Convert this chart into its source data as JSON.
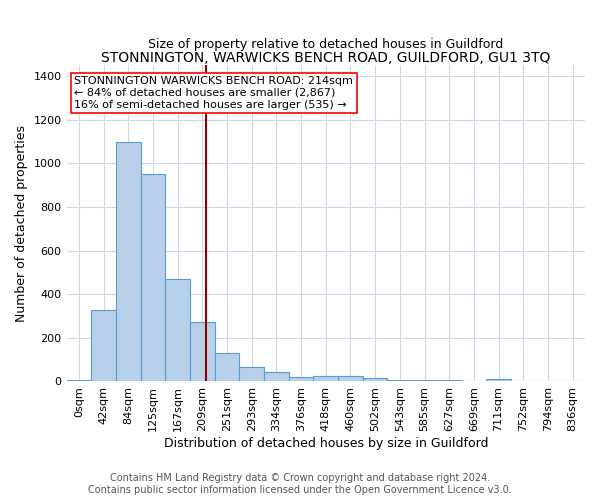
{
  "title": "STONNINGTON, WARWICKS BENCH ROAD, GUILDFORD, GU1 3TQ",
  "subtitle": "Size of property relative to detached houses in Guildford",
  "xlabel": "Distribution of detached houses by size in Guildford",
  "ylabel": "Number of detached properties",
  "categories": [
    "0sqm",
    "42sqm",
    "84sqm",
    "125sqm",
    "167sqm",
    "209sqm",
    "251sqm",
    "293sqm",
    "334sqm",
    "376sqm",
    "418sqm",
    "460sqm",
    "502sqm",
    "543sqm",
    "585sqm",
    "627sqm",
    "669sqm",
    "711sqm",
    "752sqm",
    "794sqm",
    "836sqm"
  ],
  "values": [
    5,
    330,
    1100,
    950,
    470,
    275,
    130,
    65,
    45,
    20,
    25,
    25,
    15,
    5,
    5,
    5,
    0,
    10,
    0,
    0,
    0
  ],
  "bar_color": "#b8d0ea",
  "bar_edge_color": "#5b9bd5",
  "red_line_x": 5.14,
  "red_line_color": "#8b0000",
  "annotation_text": "STONNINGTON WARWICKS BENCH ROAD: 214sqm\n← 84% of detached houses are smaller (2,867)\n16% of semi-detached houses are larger (535) →",
  "annotation_box_color": "white",
  "annotation_box_edge": "red",
  "ylim": [
    0,
    1450
  ],
  "yticks": [
    0,
    200,
    400,
    600,
    800,
    1000,
    1200,
    1400
  ],
  "footer1": "Contains HM Land Registry data © Crown copyright and database right 2024.",
  "footer2": "Contains public sector information licensed under the Open Government Licence v3.0.",
  "background_color": "#ffffff",
  "plot_bg_color": "#ffffff",
  "grid_color": "#d0d8e8",
  "title_fontsize": 10,
  "subtitle_fontsize": 9,
  "label_fontsize": 9,
  "tick_fontsize": 8,
  "footer_fontsize": 7,
  "annotation_fontsize": 8
}
